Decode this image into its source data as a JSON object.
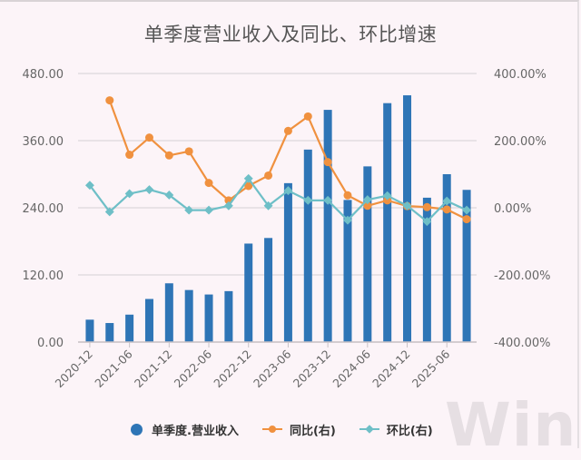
{
  "title": "单季度营业收入及同比、环比增速",
  "colors": {
    "bar": "#2e75b6",
    "yoy": "#f0913f",
    "qoq": "#6ebfc7",
    "grid": "#dcd6da",
    "axis_text": "#666666",
    "background": "#fcf4f8"
  },
  "legend": {
    "bar": "单季度.营业收入",
    "yoy": "同比(右)",
    "qoq": "环比(右)"
  },
  "watermark": "Win.d",
  "chart_data": {
    "type": "bar+line",
    "title": "单季度营业收入及同比、环比增速",
    "categories": [
      "2020-12",
      "2021-03",
      "2021-06",
      "2021-09",
      "2021-12",
      "2022-03",
      "2022-06",
      "2022-09",
      "2022-12",
      "2023-03",
      "2023-06",
      "2023-09",
      "2023-12",
      "2024-03",
      "2024-06",
      "2024-09",
      "2024-12",
      "2025-03",
      "2025-06",
      "2025-09"
    ],
    "x_tick_labels": [
      "2020-12",
      "2021-06",
      "2021-12",
      "2022-06",
      "2022-12",
      "2023-06",
      "2023-12",
      "2024-06",
      "2024-12",
      "2025-06"
    ],
    "series": [
      {
        "name": "单季度.营业收入",
        "type": "bar",
        "axis": "left",
        "values": [
          40,
          34,
          49,
          77,
          105,
          93,
          85,
          91,
          176,
          186,
          284,
          344,
          415,
          254,
          314,
          427,
          441,
          258,
          300,
          272
        ]
      },
      {
        "name": "同比(右)",
        "type": "line",
        "axis": "right",
        "marker": "circle",
        "values": [
          null,
          320,
          158,
          209,
          156,
          168,
          74,
          22,
          65,
          96,
          229,
          272,
          136,
          37,
          6,
          22,
          5,
          2,
          -5,
          -34
        ]
      },
      {
        "name": "环比(右)",
        "type": "line",
        "axis": "right",
        "marker": "diamond",
        "values": [
          67,
          -12,
          42,
          54,
          38,
          -7,
          -7,
          6,
          87,
          6,
          51,
          22,
          22,
          -37,
          24,
          36,
          6,
          -41,
          20,
          -7
        ]
      }
    ],
    "left_axis": {
      "ylim": [
        0,
        480
      ],
      "ticks": [
        "0.00",
        "120.00",
        "240.00",
        "360.00",
        "480.00"
      ],
      "tick_values": [
        0,
        120,
        240,
        360,
        480
      ]
    },
    "right_axis": {
      "ylim": [
        -400,
        400
      ],
      "ticks": [
        "-400.00%",
        "-200.00%",
        "0.00%",
        "200.00%",
        "400.00%"
      ],
      "tick_values": [
        -400,
        -200,
        0,
        200,
        400
      ]
    },
    "grid": true,
    "legend_position": "bottom"
  }
}
